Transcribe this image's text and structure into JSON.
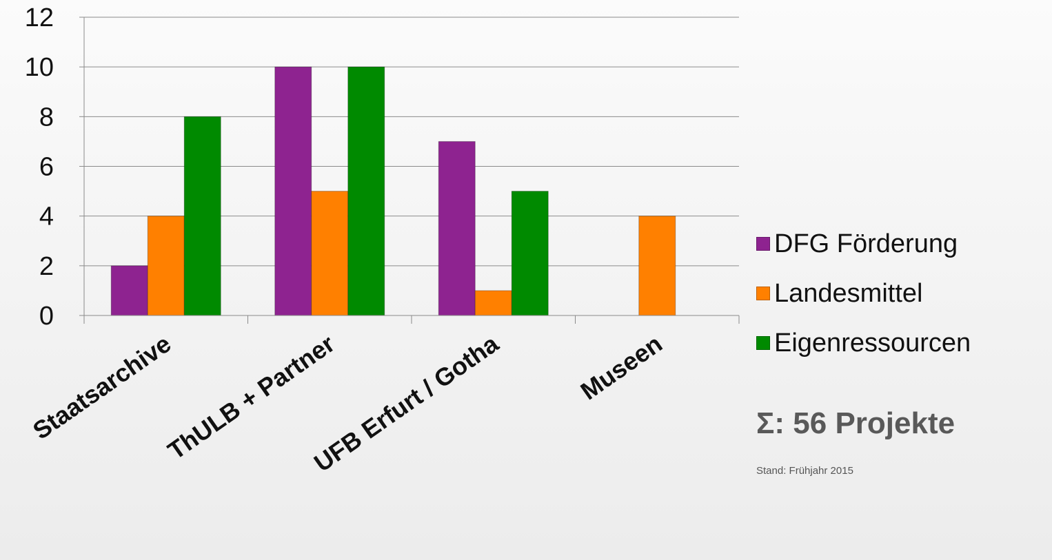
{
  "chart_data": {
    "type": "bar",
    "categories": [
      "Staatsarchive",
      "ThULB + Partner",
      "UFB Erfurt / Gotha",
      "Museen"
    ],
    "series": [
      {
        "name": "DFG Förderung",
        "values": [
          2,
          10,
          7,
          0
        ],
        "color": "#8e2390"
      },
      {
        "name": "Landesmittel",
        "values": [
          4,
          5,
          1,
          4
        ],
        "color": "#ff8000"
      },
      {
        "name": "Eigenressourcen",
        "values": [
          8,
          10,
          5,
          0
        ],
        "color": "#008a00"
      }
    ],
    "yticks": [
      0,
      2,
      4,
      6,
      8,
      10,
      12
    ],
    "ylim": [
      0,
      12
    ],
    "grid": true,
    "legend": "right"
  },
  "summary": "Σ: 56 Projekte",
  "note": "Stand: Frühjahr 2015"
}
